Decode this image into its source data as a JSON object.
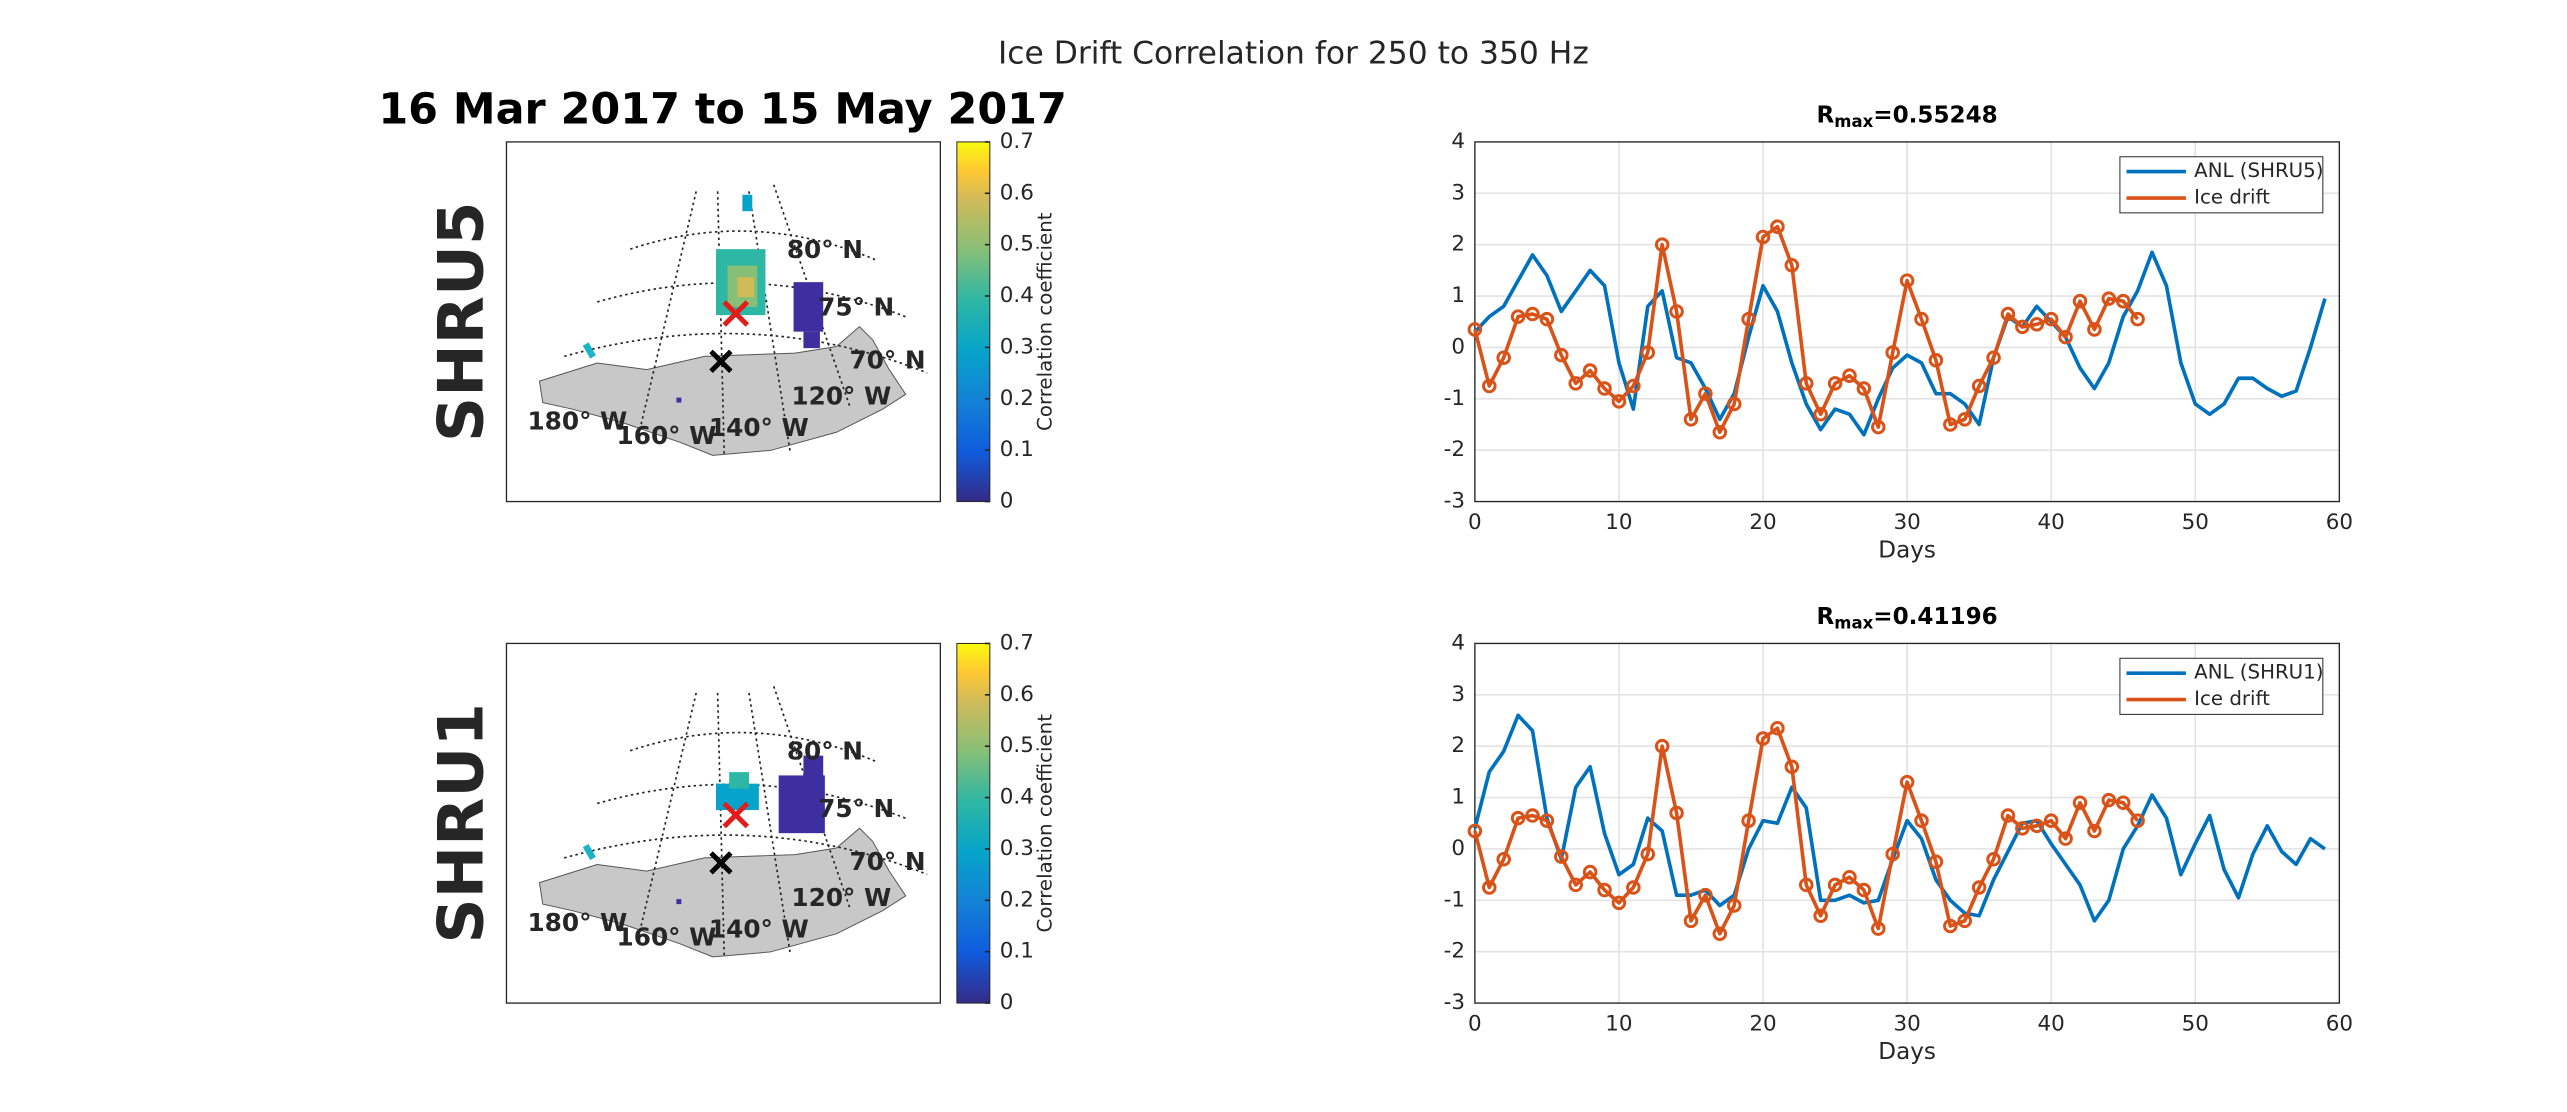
{
  "suptitle": "Ice Drift Correlation for 250 to 350 Hz",
  "maps": {
    "title": "16 Mar 2017 to 15 May 2017",
    "panels": [
      {
        "label": "SHRU5",
        "grid_labels": [
          "80° N",
          "75° N",
          "70° N",
          "120° W",
          "140° W",
          "160° W",
          "180° W"
        ],
        "colorbar": {
          "label": "Correlation coefficient",
          "lim": [
            0,
            0.7
          ],
          "ticks": [
            0,
            0.1,
            0.2,
            0.3,
            0.4,
            0.5,
            0.6,
            0.7
          ]
        }
      },
      {
        "label": "SHRU1",
        "grid_labels": [
          "80° N",
          "75° N",
          "70° N",
          "120° W",
          "140° W",
          "160° W",
          "180° W"
        ],
        "colorbar": {
          "label": "Correlation coefficient",
          "lim": [
            0,
            0.7
          ],
          "ticks": [
            0,
            0.1,
            0.2,
            0.3,
            0.4,
            0.5,
            0.6,
            0.7
          ]
        }
      }
    ]
  },
  "chart_data": [
    {
      "type": "line",
      "title": "R",
      "title_subscript": "max",
      "title_suffix": "=0.55248",
      "xlabel": "Days",
      "xlim": [
        0,
        60
      ],
      "xticks": [
        0,
        10,
        20,
        30,
        40,
        50,
        60
      ],
      "ylim": [
        -3,
        4
      ],
      "yticks": [
        -3,
        -2,
        -1,
        0,
        1,
        2,
        3,
        4
      ],
      "grid": true,
      "legend": "upper right",
      "x": [
        0,
        1,
        2,
        3,
        4,
        5,
        6,
        7,
        8,
        9,
        10,
        11,
        12,
        13,
        14,
        15,
        16,
        17,
        18,
        19,
        20,
        21,
        22,
        23,
        24,
        25,
        26,
        27,
        28,
        29,
        30,
        31,
        32,
        33,
        34,
        35,
        36,
        37,
        38,
        39,
        40,
        41,
        42,
        43,
        44,
        45,
        46,
        47,
        48,
        49,
        50,
        51,
        52,
        53,
        54,
        55,
        56,
        57,
        58,
        59
      ],
      "series": [
        {
          "name": "ANL (SHRU5)",
          "color": "#0072bd",
          "marker": "none",
          "values": [
            0.3,
            0.6,
            0.8,
            1.3,
            1.8,
            1.4,
            0.7,
            1.1,
            1.5,
            1.2,
            -0.3,
            -1.2,
            0.8,
            1.1,
            -0.2,
            -0.3,
            -0.8,
            -1.4,
            -0.9,
            0.2,
            1.2,
            0.7,
            -0.3,
            -1.1,
            -1.6,
            -1.2,
            -1.3,
            -1.7,
            -1.0,
            -0.4,
            -0.15,
            -0.3,
            -0.9,
            -0.9,
            -1.1,
            -1.5,
            -0.2,
            0.6,
            0.4,
            0.8,
            0.5,
            0.2,
            -0.4,
            -0.8,
            -0.3,
            0.6,
            1.1,
            1.85,
            1.2,
            -0.3,
            -1.1,
            -1.3,
            -1.1,
            -0.6,
            -0.6,
            -0.8,
            -0.95,
            -0.85,
            0.0,
            0.95
          ]
        },
        {
          "name": "Ice drift",
          "color": "#d95319",
          "marker": "o",
          "values": [
            0.35,
            -0.75,
            -0.2,
            0.6,
            0.65,
            0.55,
            -0.15,
            -0.7,
            -0.45,
            -0.8,
            -1.05,
            -0.75,
            -0.1,
            2.0,
            0.7,
            -1.4,
            -0.9,
            -1.65,
            -1.1,
            0.55,
            2.15,
            2.35,
            1.6,
            -0.7,
            -1.3,
            -0.7,
            -0.55,
            -0.8,
            -1.55,
            -0.1,
            1.3,
            0.55,
            -0.25,
            -1.5,
            -1.4,
            -0.75,
            -0.2,
            0.65,
            0.4,
            0.45,
            0.55,
            0.2,
            0.9,
            0.35,
            0.95,
            0.9,
            0.55,
            null,
            null,
            null,
            null,
            null,
            null,
            null,
            null,
            null,
            null,
            null,
            null,
            null
          ]
        }
      ]
    },
    {
      "type": "line",
      "title": "R",
      "title_subscript": "max",
      "title_suffix": "=0.41196",
      "xlabel": "Days",
      "xlim": [
        0,
        60
      ],
      "xticks": [
        0,
        10,
        20,
        30,
        40,
        50,
        60
      ],
      "ylim": [
        -3,
        4
      ],
      "yticks": [
        -3,
        -2,
        -1,
        0,
        1,
        2,
        3,
        4
      ],
      "grid": true,
      "legend": "upper right",
      "x": [
        0,
        1,
        2,
        3,
        4,
        5,
        6,
        7,
        8,
        9,
        10,
        11,
        12,
        13,
        14,
        15,
        16,
        17,
        18,
        19,
        20,
        21,
        22,
        23,
        24,
        25,
        26,
        27,
        28,
        29,
        30,
        31,
        32,
        33,
        34,
        35,
        36,
        37,
        38,
        39,
        40,
        41,
        42,
        43,
        44,
        45,
        46,
        47,
        48,
        49,
        50,
        51,
        52,
        53,
        54,
        55,
        56,
        57,
        58,
        59
      ],
      "series": [
        {
          "name": "ANL (SHRU1)",
          "color": "#0072bd",
          "marker": "none",
          "values": [
            0.4,
            1.5,
            1.9,
            2.6,
            2.3,
            0.6,
            -0.2,
            1.2,
            1.6,
            0.3,
            -0.5,
            -0.3,
            0.6,
            0.35,
            -0.9,
            -0.9,
            -0.8,
            -1.1,
            -0.9,
            0.0,
            0.55,
            0.5,
            1.2,
            0.8,
            -1.0,
            -1.0,
            -0.9,
            -1.05,
            -1.0,
            -0.2,
            0.55,
            0.2,
            -0.6,
            -1.0,
            -1.25,
            -1.3,
            -0.6,
            -0.05,
            0.5,
            0.55,
            0.1,
            -0.3,
            -0.7,
            -1.4,
            -1.0,
            0.0,
            0.45,
            1.05,
            0.6,
            -0.5,
            0.1,
            0.65,
            -0.4,
            -0.95,
            -0.1,
            0.45,
            -0.05,
            -0.3,
            0.2,
            0.0
          ]
        },
        {
          "name": "Ice drift",
          "color": "#d95319",
          "marker": "o",
          "values": [
            0.35,
            -0.75,
            -0.2,
            0.6,
            0.65,
            0.55,
            -0.15,
            -0.7,
            -0.45,
            -0.8,
            -1.05,
            -0.75,
            -0.1,
            2.0,
            0.7,
            -1.4,
            -0.9,
            -1.65,
            -1.1,
            0.55,
            2.15,
            2.35,
            1.6,
            -0.7,
            -1.3,
            -0.7,
            -0.55,
            -0.8,
            -1.55,
            -0.1,
            1.3,
            0.55,
            -0.25,
            -1.5,
            -1.4,
            -0.75,
            -0.2,
            0.65,
            0.4,
            0.45,
            0.55,
            0.2,
            0.9,
            0.35,
            0.95,
            0.9,
            0.55,
            null,
            null,
            null,
            null,
            null,
            null,
            null,
            null,
            null,
            null,
            null,
            null,
            null
          ]
        }
      ]
    }
  ]
}
